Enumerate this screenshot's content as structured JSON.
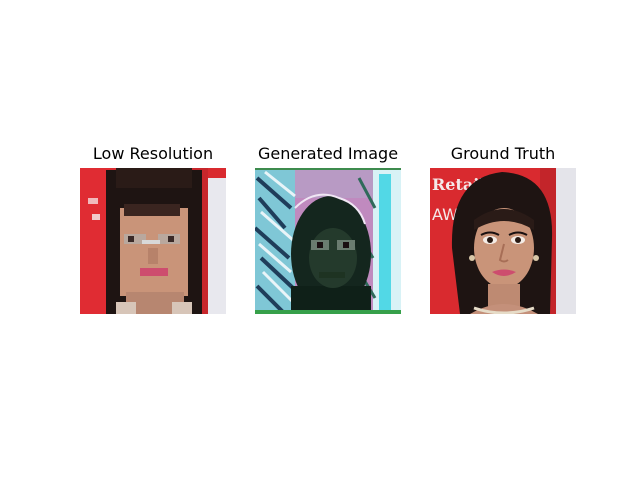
{
  "panels": [
    {
      "title": "Low Resolution"
    },
    {
      "title": "Generated Image"
    },
    {
      "title": "Ground Truth"
    }
  ],
  "colors": {
    "background_red": "#d92a2f",
    "panel_white": "#ffffff",
    "skin": "#c99479",
    "hair": "#1e1412",
    "lips": "#cd4d6e",
    "generated_magenta": "#c08abf",
    "generated_cyan": "#69e3ea",
    "generated_dark": "#14261e"
  },
  "ground_truth_backdrop_text": [
    "Retail",
    "AW"
  ]
}
